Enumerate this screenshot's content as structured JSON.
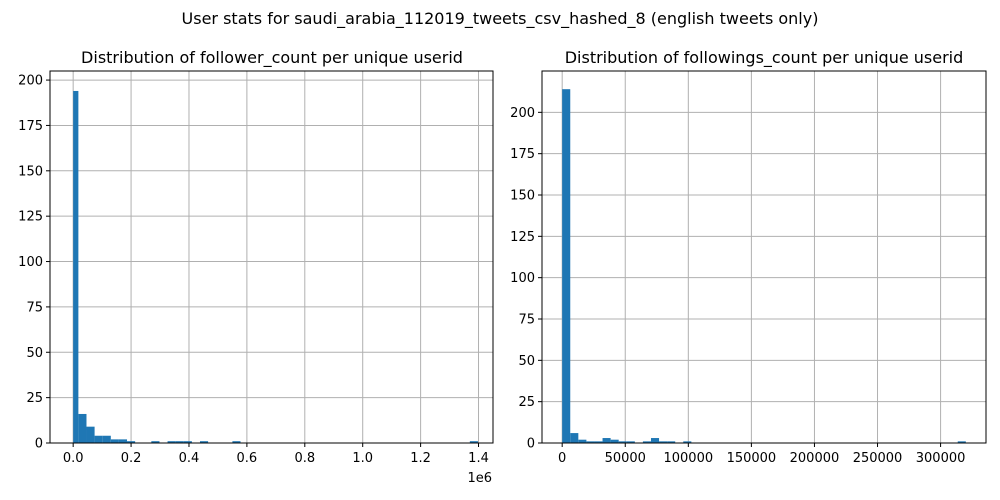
{
  "figure": {
    "suptitle": "User stats for saudi_arabia_112019_tweets_csv_hashed_8 (english tweets only)"
  },
  "chart_data": [
    {
      "type": "histogram",
      "title": "Distribution of follower_count per unique userid",
      "xlabel": "",
      "ylabel": "",
      "x_offset_text": "1e6",
      "xlim": [
        -80000,
        1450000
      ],
      "ylim": [
        0,
        205
      ],
      "xticks": [
        0,
        200000,
        400000,
        600000,
        800000,
        1000000,
        1200000,
        1400000
      ],
      "xtick_labels": [
        "0.0",
        "0.2",
        "0.4",
        "0.6",
        "0.8",
        "1.0",
        "1.2",
        "1.4"
      ],
      "yticks": [
        0,
        25,
        50,
        75,
        100,
        125,
        150,
        175,
        200
      ],
      "ytick_labels": [
        "0",
        "25",
        "50",
        "75",
        "100",
        "125",
        "150",
        "175",
        "200"
      ],
      "grid": true,
      "color": "#1f77b4",
      "bins": [
        {
          "x0": 0,
          "x1": 18000,
          "count": 194
        },
        {
          "x0": 18000,
          "x1": 46000,
          "count": 16
        },
        {
          "x0": 46000,
          "x1": 74000,
          "count": 9
        },
        {
          "x0": 74000,
          "x1": 102000,
          "count": 4
        },
        {
          "x0": 102000,
          "x1": 130000,
          "count": 4
        },
        {
          "x0": 130000,
          "x1": 158000,
          "count": 2
        },
        {
          "x0": 158000,
          "x1": 186000,
          "count": 2
        },
        {
          "x0": 186000,
          "x1": 214000,
          "count": 1
        },
        {
          "x0": 270000,
          "x1": 298000,
          "count": 1
        },
        {
          "x0": 326000,
          "x1": 354000,
          "count": 1
        },
        {
          "x0": 354000,
          "x1": 382000,
          "count": 1
        },
        {
          "x0": 382000,
          "x1": 410000,
          "count": 1
        },
        {
          "x0": 438000,
          "x1": 466000,
          "count": 1
        },
        {
          "x0": 550000,
          "x1": 578000,
          "count": 1
        },
        {
          "x0": 1370000,
          "x1": 1398000,
          "count": 1
        }
      ]
    },
    {
      "type": "histogram",
      "title": "Distribution of followings_count per unique userid",
      "xlabel": "",
      "ylabel": "",
      "xlim": [
        -16000,
        336000
      ],
      "ylim": [
        0,
        225
      ],
      "xticks": [
        0,
        50000,
        100000,
        150000,
        200000,
        250000,
        300000
      ],
      "xtick_labels": [
        "0",
        "50000",
        "100000",
        "150000",
        "200000",
        "250000",
        "300000"
      ],
      "yticks": [
        0,
        25,
        50,
        75,
        100,
        125,
        150,
        175,
        200
      ],
      "ytick_labels": [
        "0",
        "25",
        "50",
        "75",
        "100",
        "125",
        "150",
        "175",
        "200"
      ],
      "grid": true,
      "color": "#1f77b4",
      "bins": [
        {
          "x0": 0,
          "x1": 6400,
          "count": 214
        },
        {
          "x0": 6400,
          "x1": 12800,
          "count": 6
        },
        {
          "x0": 12800,
          "x1": 19200,
          "count": 2
        },
        {
          "x0": 19200,
          "x1": 25600,
          "count": 1
        },
        {
          "x0": 25600,
          "x1": 32000,
          "count": 1
        },
        {
          "x0": 32000,
          "x1": 38400,
          "count": 3
        },
        {
          "x0": 38400,
          "x1": 44800,
          "count": 2
        },
        {
          "x0": 44800,
          "x1": 51200,
          "count": 1
        },
        {
          "x0": 51200,
          "x1": 57600,
          "count": 1
        },
        {
          "x0": 64000,
          "x1": 70400,
          "count": 1
        },
        {
          "x0": 70400,
          "x1": 76800,
          "count": 3
        },
        {
          "x0": 76800,
          "x1": 83200,
          "count": 1
        },
        {
          "x0": 83200,
          "x1": 89600,
          "count": 1
        },
        {
          "x0": 96000,
          "x1": 102400,
          "count": 1
        },
        {
          "x0": 313600,
          "x1": 320000,
          "count": 1
        }
      ]
    }
  ]
}
